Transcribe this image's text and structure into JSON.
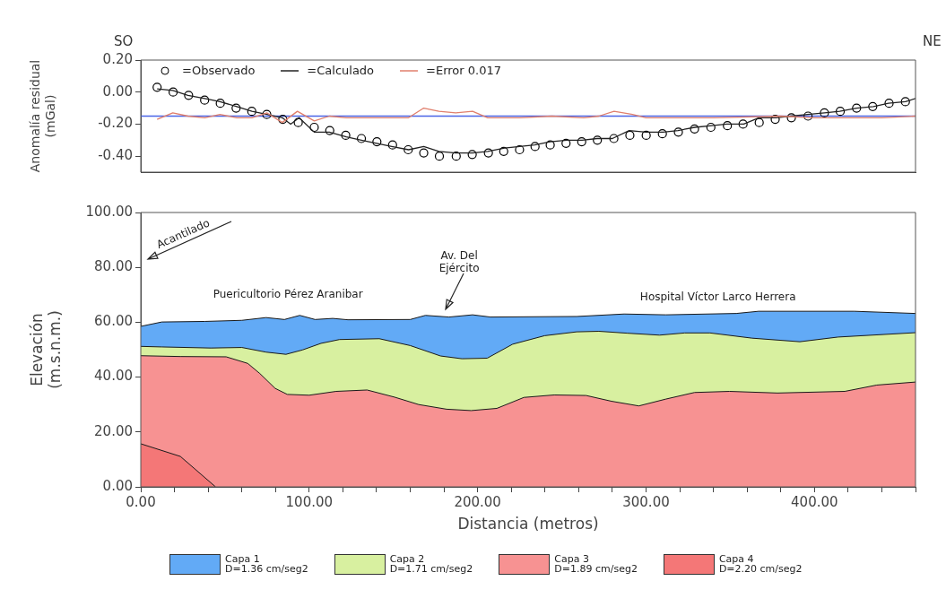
{
  "chart_data": [
    {
      "type": "line",
      "xlim": [
        0,
        460
      ],
      "ylim": [
        -0.5,
        0.2
      ],
      "yticks": [
        {
          "value": 0.2,
          "label": "0.20"
        },
        {
          "value": 0,
          "label": "0.00"
        },
        {
          "value": -0.2,
          "label": "-0.20"
        },
        {
          "value": -0.4,
          "label": "-0.40"
        }
      ],
      "ylabel": "Anomalía residual (mGal)",
      "tick_labels": "y",
      "legend": "top left",
      "grid": false,
      "annotations": [
        "SO",
        "NE"
      ],
      "ref_lines": [
        {
          "axis": "y",
          "value": -0.15,
          "color": "#4a64e6"
        }
      ],
      "series": [
        {
          "name": "=Observado",
          "type": "scatter",
          "marker": "circle",
          "color": "#000000",
          "x": [
            9.7,
            19.2,
            28.4,
            37.9,
            47.2,
            56.6,
            65.9,
            74.8,
            84.3,
            93.5,
            103,
            112.2,
            121.7,
            131,
            140.2,
            149.5,
            158.8,
            168,
            177.3,
            187.3,
            196.8,
            206.4,
            215.5,
            224.9,
            234.1,
            243.1,
            252.5,
            261.8,
            271.1,
            280.9,
            290.4,
            300.1,
            309.7,
            319.2,
            328.8,
            338.5,
            348.3,
            357.6,
            367.2,
            376.7,
            386.3,
            396.2,
            405.9,
            415.3,
            425,
            434.6,
            444.3,
            454
          ],
          "values": [
            0.03,
            0.0,
            -0.02,
            -0.05,
            -0.07,
            -0.1,
            -0.12,
            -0.14,
            -0.17,
            -0.19,
            -0.22,
            -0.24,
            -0.27,
            -0.29,
            -0.31,
            -0.33,
            -0.36,
            -0.38,
            -0.4,
            -0.4,
            -0.39,
            -0.38,
            -0.37,
            -0.36,
            -0.34,
            -0.33,
            -0.32,
            -0.31,
            -0.3,
            -0.29,
            -0.27,
            -0.27,
            -0.26,
            -0.25,
            -0.23,
            -0.22,
            -0.21,
            -0.2,
            -0.19,
            -0.17,
            -0.16,
            -0.15,
            -0.13,
            -0.12,
            -0.1,
            -0.09,
            -0.07,
            -0.06
          ]
        },
        {
          "name": "=Calculado",
          "type": "line",
          "marker": "none",
          "color": "#222222",
          "x": [
            9.7,
            19,
            28,
            38,
            47,
            57,
            66,
            75,
            84,
            89,
            94,
            103,
            112,
            122,
            131,
            140,
            149,
            159,
            168,
            177,
            187,
            197,
            206,
            216,
            225,
            234,
            243,
            253,
            262,
            271,
            280,
            290,
            300,
            310,
            319,
            329,
            339,
            348,
            358,
            367,
            377,
            386,
            396,
            406,
            415,
            425,
            435,
            444,
            454,
            460
          ],
          "values": [
            0.02,
            0.01,
            -0.02,
            -0.04,
            -0.06,
            -0.09,
            -0.12,
            -0.14,
            -0.16,
            -0.2,
            -0.16,
            -0.25,
            -0.25,
            -0.28,
            -0.3,
            -0.32,
            -0.34,
            -0.36,
            -0.34,
            -0.37,
            -0.38,
            -0.38,
            -0.37,
            -0.35,
            -0.34,
            -0.33,
            -0.31,
            -0.3,
            -0.3,
            -0.29,
            -0.29,
            -0.24,
            -0.25,
            -0.25,
            -0.24,
            -0.22,
            -0.21,
            -0.2,
            -0.2,
            -0.16,
            -0.16,
            -0.15,
            -0.14,
            -0.13,
            -0.12,
            -0.1,
            -0.09,
            -0.07,
            -0.06,
            -0.04
          ]
        },
        {
          "name": "=Error 0.017",
          "type": "line",
          "marker": "none",
          "color": "#e07f6c",
          "x": [
            9.7,
            19,
            28,
            38,
            47,
            57,
            66,
            75,
            84,
            93,
            103,
            112,
            122,
            131,
            140,
            149,
            159,
            168,
            177,
            187,
            197,
            206,
            225,
            244,
            263,
            272,
            281,
            292,
            300,
            340,
            380,
            400,
            440,
            460
          ],
          "values": [
            -0.17,
            -0.13,
            -0.15,
            -0.16,
            -0.14,
            -0.16,
            -0.16,
            -0.13,
            -0.19,
            -0.12,
            -0.18,
            -0.15,
            -0.16,
            -0.16,
            -0.16,
            -0.16,
            -0.16,
            -0.1,
            -0.12,
            -0.13,
            -0.12,
            -0.16,
            -0.16,
            -0.15,
            -0.16,
            -0.15,
            -0.12,
            -0.14,
            -0.16,
            -0.16,
            -0.15,
            -0.16,
            -0.16,
            -0.15
          ]
        }
      ]
    },
    {
      "type": "area",
      "xlim": [
        0,
        460
      ],
      "xticks": [
        {
          "value": 0,
          "label": "0.00"
        },
        {
          "value": 20,
          "label": null
        },
        {
          "value": 40,
          "label": null
        },
        {
          "value": 60,
          "label": null
        },
        {
          "value": 80,
          "label": null
        },
        {
          "value": 100,
          "label": "100.00"
        },
        {
          "value": 120,
          "label": null
        },
        {
          "value": 140,
          "label": null
        },
        {
          "value": 160,
          "label": null
        },
        {
          "value": 180,
          "label": null
        },
        {
          "value": 200,
          "label": "200.00"
        },
        {
          "value": 220,
          "label": null
        },
        {
          "value": 240,
          "label": null
        },
        {
          "value": 260,
          "label": null
        },
        {
          "value": 280,
          "label": null
        },
        {
          "value": 300,
          "label": "300.00"
        },
        {
          "value": 320,
          "label": null
        },
        {
          "value": 340,
          "label": null
        },
        {
          "value": 360,
          "label": null
        },
        {
          "value": 380,
          "label": null
        },
        {
          "value": 400,
          "label": "400.00"
        },
        {
          "value": 420,
          "label": null
        },
        {
          "value": 440,
          "label": null
        },
        {
          "value": 460,
          "label": null
        }
      ],
      "ylim": [
        0,
        100
      ],
      "yticks": [
        {
          "value": 0,
          "label": "0.00"
        },
        {
          "value": 20,
          "label": "20.00"
        },
        {
          "value": 40,
          "label": "40.00"
        },
        {
          "value": 60,
          "label": "60.00"
        },
        {
          "value": 80,
          "label": "80.00"
        },
        {
          "value": 100,
          "label": "100.00"
        }
      ],
      "xlabel": "Distancia (metros)",
      "ylabel": "Elevación (m.s.n.m.)",
      "legend": "bottom",
      "grid": false,
      "annotations": [
        "Acantilado",
        "Av. Del Ejército",
        "Puericultorio Pérez Aranibar",
        "Hospital Víctor Larco Herrera"
      ],
      "series": [
        {
          "name": "Capa 1\nD=1.36 cm/seg2",
          "color": "#62aaf6",
          "x": [
            0,
            12.5,
            38,
            60,
            74.4,
            85.3,
            94.4,
            103.5,
            114,
            123,
            160,
            169,
            183,
            197,
            207.6,
            258.8,
            287,
            311.8,
            353.6,
            366.8,
            423.7,
            460
          ],
          "values": [
            58.5,
            60.1,
            60.3,
            60.7,
            61.7,
            61,
            62.5,
            61,
            61.4,
            60.9,
            61,
            62.5,
            61.9,
            62.7,
            61.9,
            62.1,
            63,
            62.7,
            63.2,
            64,
            64,
            63.2
          ]
        },
        {
          "name": "Capa 2\nD=1.71 cm/seg2",
          "color": "#d8f0a0",
          "x": [
            0,
            12.5,
            41.6,
            60,
            74.4,
            86.2,
            96,
            107,
            118,
            141.6,
            160,
            178,
            190.7,
            205.7,
            220.8,
            239.8,
            258.8,
            272,
            289,
            308,
            323,
            338,
            362.9,
            391.3,
            414,
            460
          ],
          "values": [
            51.2,
            51,
            50.6,
            50.8,
            49.1,
            48.3,
            49.9,
            52.3,
            53.7,
            54,
            51.5,
            47.7,
            46.7,
            46.9,
            52,
            55.1,
            56.5,
            56.7,
            56,
            55.3,
            56.1,
            56.1,
            54.2,
            52.9,
            54.6,
            56.2
          ]
        },
        {
          "name": "Capa 3\nD=1.89 cm/seg2",
          "color": "#f79292",
          "x": [
            0,
            23.5,
            50.7,
            63.5,
            70.7,
            79.8,
            87,
            100,
            116,
            134.4,
            150.7,
            165,
            181.6,
            196.2,
            211.4,
            227.5,
            245.5,
            264.4,
            279.5,
            295.7,
            311.8,
            328.8,
            349.6,
            378,
            418,
            437,
            460
          ],
          "values": [
            47.8,
            47.5,
            47.4,
            45,
            41.3,
            35.9,
            33.7,
            33.4,
            34.8,
            35.3,
            32.7,
            30,
            28.3,
            27.8,
            28.6,
            32.6,
            33.5,
            33.3,
            31.2,
            29.5,
            32,
            34.4,
            34.8,
            34.2,
            34.8,
            37.1,
            38.2
          ]
        },
        {
          "name": "Capa 4\nD=2.20 cm/seg2",
          "color": "#f47777",
          "x": [
            0,
            23.5,
            44.4
          ],
          "values": [
            15.7,
            11.1,
            0
          ]
        }
      ]
    }
  ]
}
